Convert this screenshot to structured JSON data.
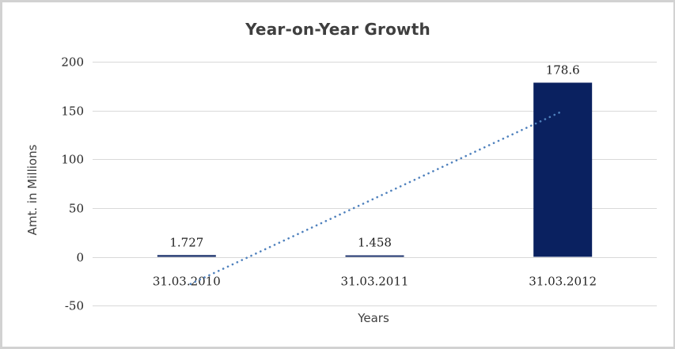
{
  "chart_data": {
    "type": "bar",
    "title": "Year-on-Year Growth",
    "xlabel": "Years",
    "ylabel": "Amt. in Millions",
    "categories": [
      "31.03.2010",
      "31.03.2011",
      "31.03.2012"
    ],
    "series": [
      {
        "name": "Amt. in Millions",
        "values": [
          1.727,
          1.458,
          178.6
        ],
        "value_labels": [
          "1.727",
          "1.458",
          "178.6"
        ]
      }
    ],
    "ylim": [
      -50,
      200
    ],
    "yticks": [
      200,
      150,
      100,
      50,
      0,
      -50
    ],
    "ytick_labels": [
      "200",
      "150",
      "100",
      "50",
      "0",
      "-50"
    ],
    "grid": "horizontal",
    "legend": "none",
    "trendline": {
      "type": "linear",
      "style": "dotted",
      "endpoint_values": [
        -27.8,
        149.0
      ]
    },
    "colors": {
      "bar": "#0a2160",
      "gridline": "#d9d9d9",
      "trendline": "#4f81bd",
      "title_text": "#3f3f3f",
      "axis_title_text": "#404040",
      "tick_text": "#262626",
      "data_label_text": "#1f1f1f",
      "frame_border": "#d2d2d2",
      "background": "#ffffff"
    }
  }
}
